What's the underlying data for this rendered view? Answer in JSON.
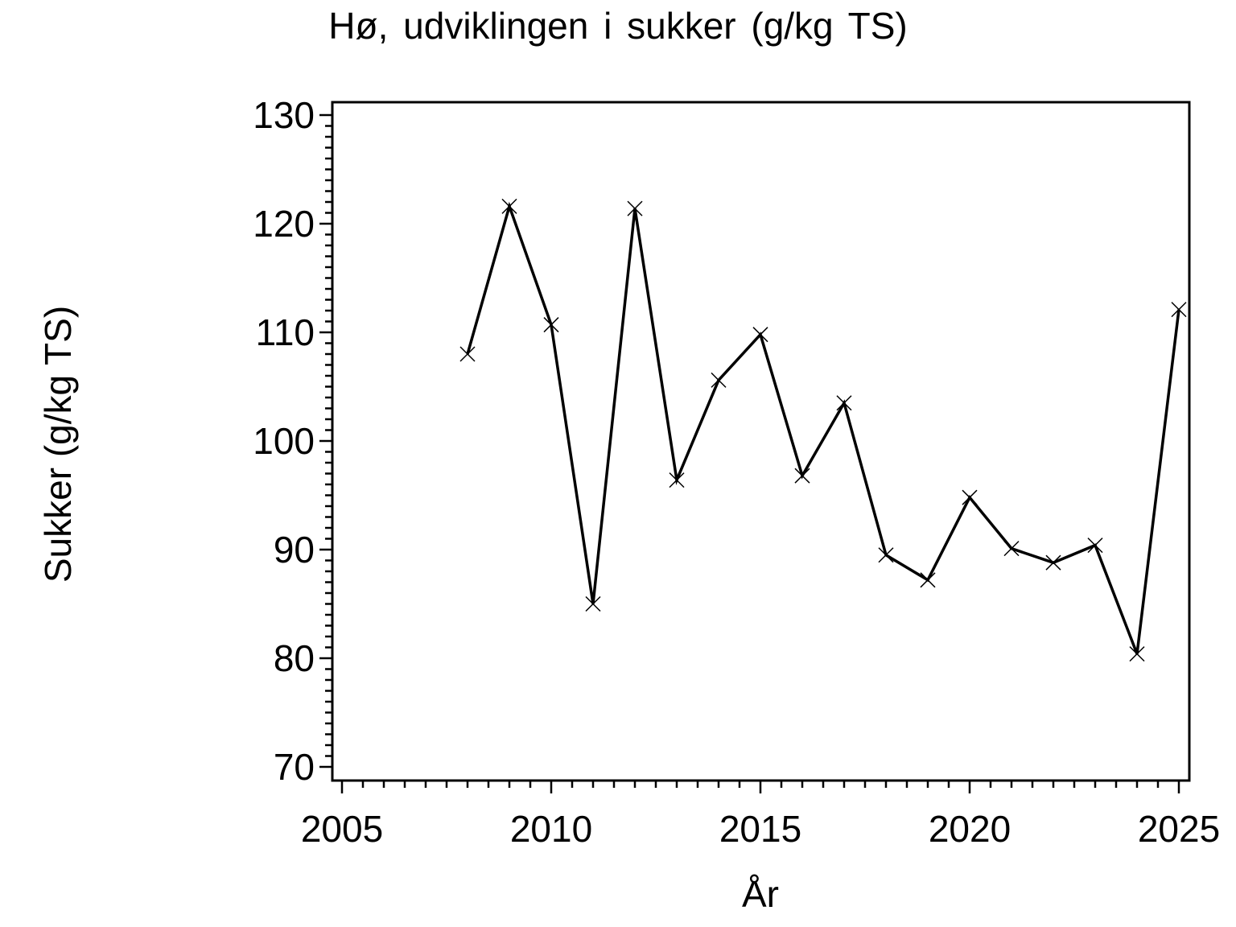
{
  "chart_data": {
    "type": "line",
    "title": "Hø, udviklingen i sukker (g/kg TS)",
    "xlabel": "År",
    "ylabel": "Sukker (g/kg TS)",
    "x": [
      2008,
      2009,
      2010,
      2011,
      2012,
      2013,
      2014,
      2015,
      2016,
      2017,
      2018,
      2019,
      2020,
      2021,
      2022,
      2023,
      2024,
      2025
    ],
    "y": [
      108.0,
      121.6,
      110.7,
      85.0,
      121.4,
      96.4,
      105.6,
      109.8,
      96.8,
      103.5,
      89.5,
      87.2,
      94.8,
      90.1,
      88.8,
      90.4,
      80.4,
      112.1
    ],
    "xlim": [
      2005,
      2025
    ],
    "ylim": [
      70,
      130
    ],
    "x_major_ticks": [
      2005,
      2010,
      2015,
      2020,
      2025
    ],
    "x_minor_step": 0.5,
    "y_major_ticks": [
      70,
      80,
      90,
      100,
      110,
      120,
      130
    ],
    "y_minor_step": 1,
    "series_name": "Sukker",
    "marker": "x-cross",
    "line_color": "#000000",
    "background_color": "#ffffff",
    "grid": false,
    "legend": null
  }
}
